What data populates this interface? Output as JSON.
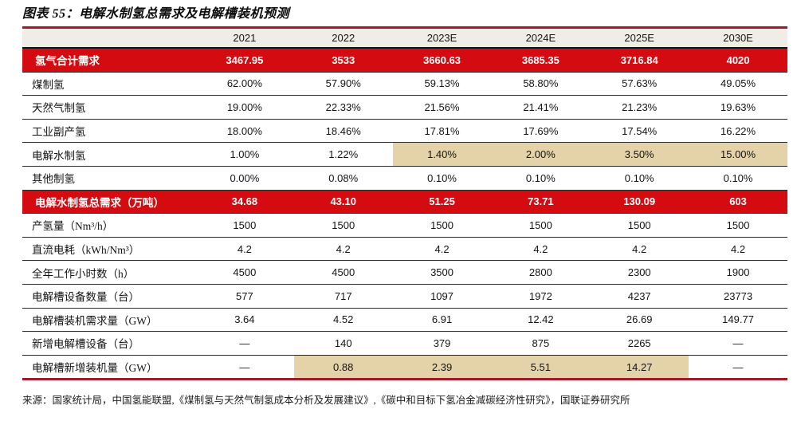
{
  "title": "图表 55：电解水制氢总需求及电解槽装机预测",
  "source": "来源：国家统计局，中国氢能联盟,《煤制氢与天然气制氢成本分析及发展建议》,《碳中和目标下氢冶金减碳经济性研究》，国联证券研究所",
  "colors": {
    "accent_red": "#d40b10",
    "border_maroon": "#9e1b2b",
    "header_bg": "#f0ede6",
    "highlight_tan": "#e4d3a8"
  },
  "chart_data": {
    "type": "table",
    "title": "电解水制氢总需求及电解槽装机预测",
    "columns": [
      "2021",
      "2022",
      "2023E",
      "2024E",
      "2025E",
      "2030E"
    ],
    "rows": [
      {
        "label": "氢气合计需求",
        "type": "red",
        "values": [
          "3467.95",
          "3533",
          "3660.63",
          "3685.35",
          "3716.84",
          "4020"
        ],
        "highlight": []
      },
      {
        "label": "煤制氢",
        "type": "normal",
        "values": [
          "62.00%",
          "57.90%",
          "59.13%",
          "58.80%",
          "57.63%",
          "49.05%"
        ],
        "highlight": []
      },
      {
        "label": "天然气制氢",
        "type": "normal",
        "values": [
          "19.00%",
          "22.33%",
          "21.56%",
          "21.41%",
          "21.23%",
          "19.63%"
        ],
        "highlight": []
      },
      {
        "label": "工业副产氢",
        "type": "normal",
        "values": [
          "18.00%",
          "18.46%",
          "17.81%",
          "17.69%",
          "17.54%",
          "16.22%"
        ],
        "highlight": []
      },
      {
        "label": "电解水制氢",
        "type": "normal",
        "values": [
          "1.00%",
          "1.22%",
          "1.40%",
          "2.00%",
          "3.50%",
          "15.00%"
        ],
        "highlight": [
          2,
          3,
          4,
          5
        ]
      },
      {
        "label": "其他制氢",
        "type": "normal",
        "values": [
          "0.00%",
          "0.08%",
          "0.10%",
          "0.10%",
          "0.10%",
          "0.10%"
        ],
        "highlight": []
      },
      {
        "label": "电解水制氢总需求（万吨）",
        "type": "red",
        "values": [
          "34.68",
          "43.10",
          "51.25",
          "73.71",
          "130.09",
          "603"
        ],
        "highlight": []
      },
      {
        "label": "产氢量（Nm³/h）",
        "type": "normal",
        "values": [
          "1500",
          "1500",
          "1500",
          "1500",
          "1500",
          "1500"
        ],
        "highlight": []
      },
      {
        "label": "直流电耗（kWh/Nm³）",
        "type": "normal",
        "values": [
          "4.2",
          "4.2",
          "4.2",
          "4.2",
          "4.2",
          "4.2"
        ],
        "highlight": []
      },
      {
        "label": "全年工作小时数（h）",
        "type": "normal",
        "values": [
          "4500",
          "4500",
          "3500",
          "2800",
          "2300",
          "1900"
        ],
        "highlight": []
      },
      {
        "label": "电解槽设备数量（台）",
        "type": "normal",
        "values": [
          "577",
          "717",
          "1097",
          "1972",
          "4237",
          "23773"
        ],
        "highlight": []
      },
      {
        "label": "电解槽装机需求量（GW）",
        "type": "normal",
        "values": [
          "3.64",
          "4.52",
          "6.91",
          "12.42",
          "26.69",
          "149.77"
        ],
        "highlight": []
      },
      {
        "label": "新增电解槽设备（台）",
        "type": "normal",
        "values": [
          "—",
          "140",
          "379",
          "875",
          "2265",
          "—"
        ],
        "highlight": []
      },
      {
        "label": "电解槽新增装机量（GW）",
        "type": "normal",
        "values": [
          "—",
          "0.88",
          "2.39",
          "5.51",
          "14.27",
          "—"
        ],
        "highlight": [
          1,
          2,
          3,
          4
        ]
      }
    ]
  }
}
